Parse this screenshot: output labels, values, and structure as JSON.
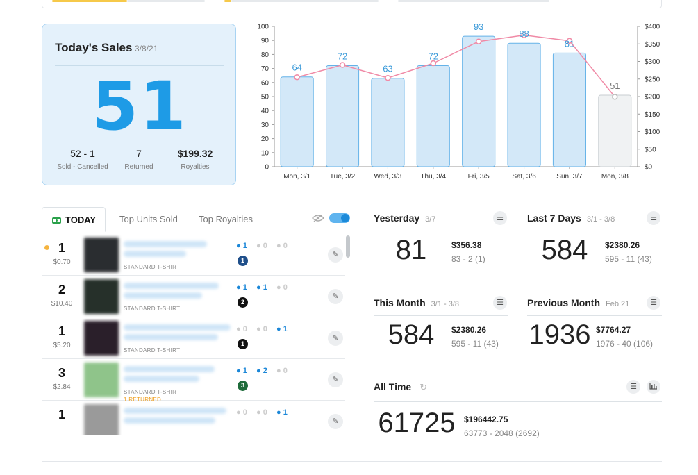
{
  "sales_card": {
    "title": "Today's Sales",
    "date": "3/8/21",
    "count": "51",
    "sold_cancelled": "52 - 1",
    "sold_cancelled_label": "Sold - Cancelled",
    "returned": "7",
    "returned_label": "Returned",
    "royalties": "$199.32",
    "royalties_label": "Royalties"
  },
  "chart_data": {
    "type": "bar",
    "categories": [
      "Mon, 3/1",
      "Tue, 3/2",
      "Wed, 3/3",
      "Thu, 3/4",
      "Fri, 3/5",
      "Sat, 3/6",
      "Sun, 3/7",
      "Mon, 3/8"
    ],
    "series": [
      {
        "values": [
          64,
          72,
          63,
          72,
          93,
          88,
          81,
          51
        ]
      },
      {
        "type": "line",
        "axis": "right",
        "values": [
          255,
          290,
          253,
          295,
          357,
          375,
          359,
          199.32
        ]
      }
    ],
    "data_labels": [
      "64",
      "72",
      "63",
      "72",
      "93",
      "88",
      "81",
      "51"
    ],
    "ylim": [
      0,
      100
    ],
    "yticks": [
      "0",
      "10",
      "20",
      "30",
      "40",
      "50",
      "60",
      "70",
      "80",
      "90",
      "100"
    ],
    "y2lim": [
      0,
      400
    ],
    "y2ticks": [
      "$0",
      "$50",
      "$100",
      "$150",
      "$200",
      "$250",
      "$300",
      "$350",
      "$400"
    ],
    "grid": false,
    "colors": {
      "bar": "#d3e8f8",
      "bar_border": "#64b2e8",
      "today_bar": "#f0f2f3",
      "today_border": "#c8cdd1",
      "line": "#f08aa6",
      "label": "#3a9ad9"
    }
  },
  "tabs": {
    "today": "TODAY",
    "top_units": "Top Units Sold",
    "top_royalties": "Top Royalties"
  },
  "orders": [
    {
      "qty": "1",
      "price": "$0.70",
      "type": "STANDARD T-SHIRT",
      "men": "1",
      "women": "0",
      "kids": "0",
      "badge": "1",
      "badge_color": "#1f4f8a",
      "new": true,
      "returned": ""
    },
    {
      "qty": "2",
      "price": "$10.40",
      "type": "STANDARD T-SHIRT",
      "men": "1",
      "women": "1",
      "kids": "0",
      "badge": "2",
      "badge_color": "#111111",
      "new": false,
      "returned": ""
    },
    {
      "qty": "1",
      "price": "$5.20",
      "type": "STANDARD T-SHIRT",
      "men": "0",
      "women": "0",
      "kids": "1",
      "badge": "1",
      "badge_color": "#111111",
      "new": false,
      "returned": ""
    },
    {
      "qty": "3",
      "price": "$2.84",
      "type": "STANDARD T-SHIRT",
      "men": "1",
      "women": "2",
      "kids": "0",
      "badge": "3",
      "badge_color": "#1e6b3a",
      "new": false,
      "returned": "1 RETURNED"
    },
    {
      "qty": "1",
      "price": "",
      "type": "",
      "men": "0",
      "women": "0",
      "kids": "1",
      "badge": "",
      "badge_color": "#111111",
      "new": false,
      "returned": ""
    }
  ],
  "stats": {
    "yesterday": {
      "title": "Yesterday",
      "date": "3/7",
      "count": "81",
      "money": "$356.38",
      "sub": "83 - 2  (1)"
    },
    "last7": {
      "title": "Last 7 Days",
      "date": "3/1 - 3/8",
      "count": "584",
      "money": "$2380.26",
      "sub": "595 - 11  (43)"
    },
    "this_month": {
      "title": "This Month",
      "date": "3/1 - 3/8",
      "count": "584",
      "money": "$2380.26",
      "sub": "595 - 11  (43)"
    },
    "prev_month": {
      "title": "Previous Month",
      "date": "Feb 21",
      "count": "1936",
      "money": "$7764.27",
      "sub": "1976 - 40  (106)"
    },
    "all_time": {
      "title": "All Time",
      "count": "61725",
      "money": "$196442.75",
      "sub": "63773 - 2048  (2692)"
    }
  },
  "icons": {
    "list": "list-icon",
    "chart": "bar-chart-icon",
    "refresh": "refresh-icon",
    "hide": "eye-slash-icon",
    "edit": "pencil-icon"
  }
}
